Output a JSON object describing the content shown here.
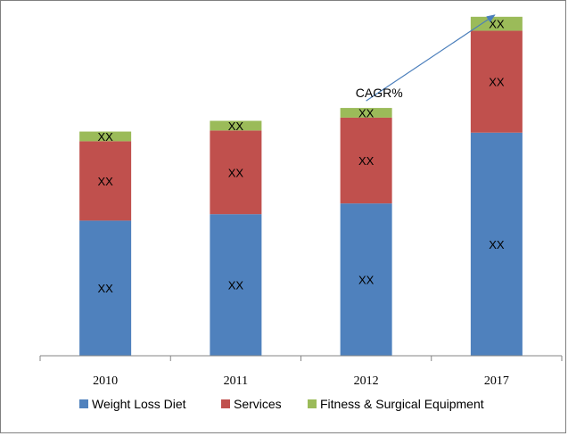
{
  "chart_data": {
    "type": "bar",
    "stacked": true,
    "categories": [
      "2010",
      "2011",
      "2012",
      "2017"
    ],
    "series": [
      {
        "name": "Weight Loss Diet",
        "color": "#4F81BD",
        "values": [
          126,
          132,
          142,
          208
        ],
        "labels": [
          "XX",
          "XX",
          "XX",
          "XX"
        ]
      },
      {
        "name": "Services",
        "color": "#C0504D",
        "values": [
          74,
          78,
          80,
          95
        ],
        "labels": [
          "XX",
          "XX",
          "XX",
          "XX"
        ]
      },
      {
        "name": "Fitness & Surgical Equipment",
        "color": "#9BBB59",
        "values": [
          9,
          9,
          9,
          13
        ],
        "labels": [
          "XX",
          "XX",
          "XX",
          "XX"
        ]
      }
    ],
    "annotation": {
      "text": "CAGR%",
      "arrow_from_category": "2012",
      "arrow_to_category": "2017"
    },
    "legend_position": "bottom",
    "grid": false,
    "ylim": [
      0,
      320
    ]
  }
}
